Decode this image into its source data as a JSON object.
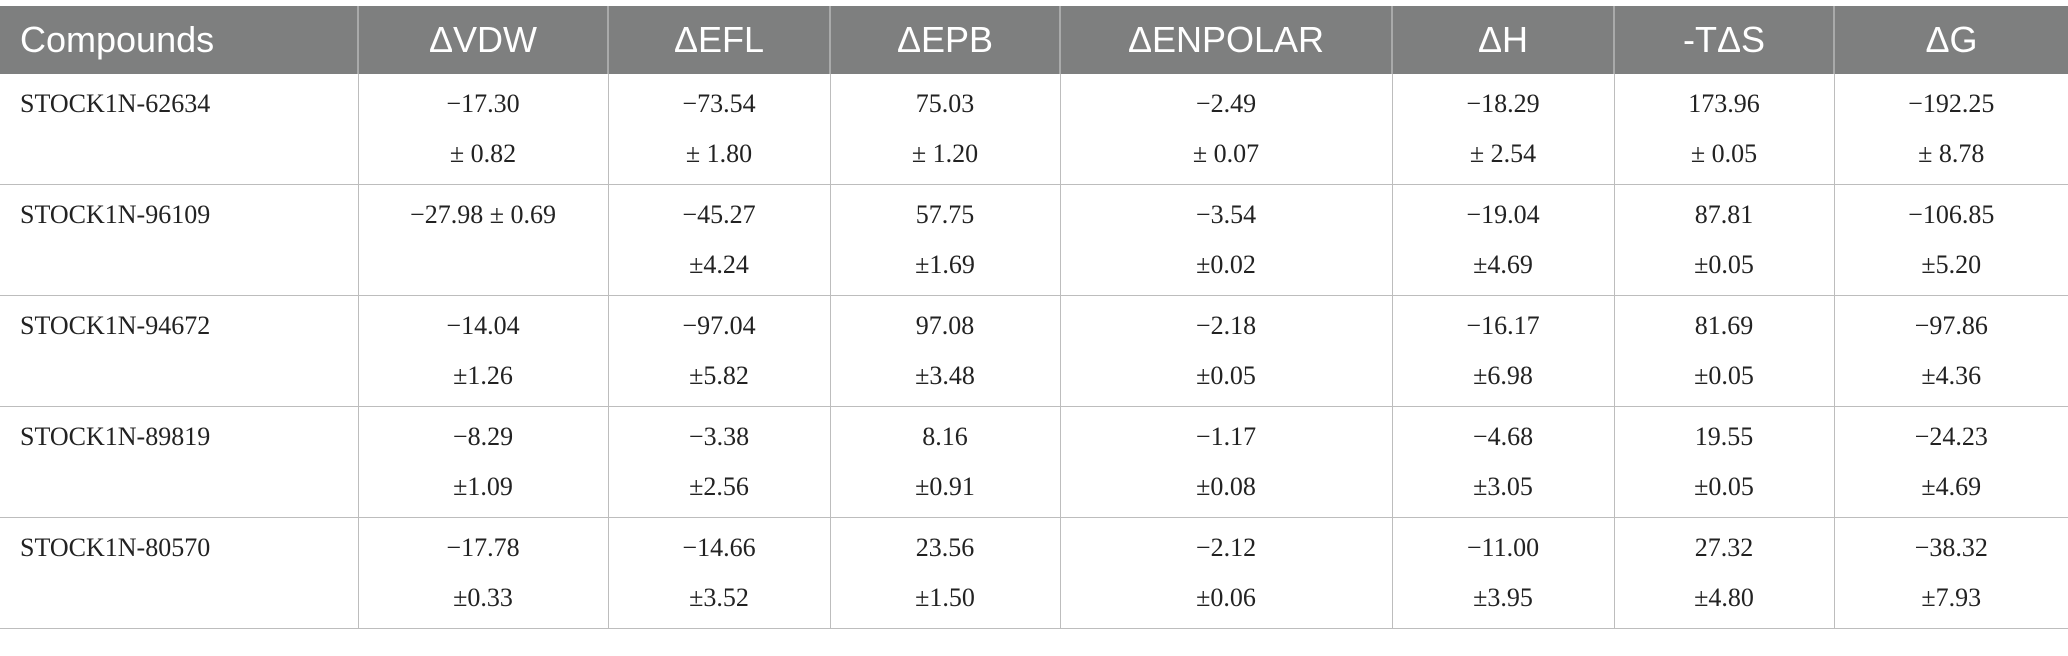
{
  "table": {
    "headers": [
      "Compounds",
      "ΔVDW",
      "ΔEFL",
      "ΔEPB",
      "ΔENPOLAR",
      "ΔH",
      "-TΔS",
      "ΔG"
    ],
    "rows": [
      {
        "compound": "STOCK1N-62634",
        "cells": [
          [
            "−17.30",
            "± 0.82"
          ],
          [
            "−73.54",
            "± 1.80"
          ],
          [
            "75.03",
            "± 1.20"
          ],
          [
            "−2.49",
            "± 0.07"
          ],
          [
            "−18.29",
            "± 2.54"
          ],
          [
            "173.96",
            "± 0.05"
          ],
          [
            "−192.25",
            "± 8.78"
          ]
        ]
      },
      {
        "compound": "STOCK1N-96109",
        "cells": [
          [
            "−27.98 ± 0.69",
            ""
          ],
          [
            "−45.27",
            "±4.24"
          ],
          [
            "57.75",
            "±1.69"
          ],
          [
            "−3.54",
            "±0.02"
          ],
          [
            "−19.04",
            "±4.69"
          ],
          [
            "87.81",
            "±0.05"
          ],
          [
            "−106.85",
            "±5.20"
          ]
        ]
      },
      {
        "compound": "STOCK1N-94672",
        "cells": [
          [
            "−14.04",
            "±1.26"
          ],
          [
            "−97.04",
            "±5.82"
          ],
          [
            "97.08",
            "±3.48"
          ],
          [
            "−2.18",
            "±0.05"
          ],
          [
            "−16.17",
            "±6.98"
          ],
          [
            "81.69",
            "±0.05"
          ],
          [
            "−97.86",
            "±4.36"
          ]
        ]
      },
      {
        "compound": "STOCK1N-89819",
        "cells": [
          [
            "−8.29",
            "±1.09"
          ],
          [
            "−3.38",
            "±2.56"
          ],
          [
            "8.16",
            "±0.91"
          ],
          [
            "−1.17",
            "±0.08"
          ],
          [
            "−4.68",
            "±3.05"
          ],
          [
            "19.55",
            "±0.05"
          ],
          [
            "−24.23",
            "±4.69"
          ]
        ]
      },
      {
        "compound": "STOCK1N-80570",
        "cells": [
          [
            "−17.78",
            "±0.33"
          ],
          [
            "−14.66",
            "±3.52"
          ],
          [
            "23.56",
            "±1.50"
          ],
          [
            "−2.12",
            "±0.06"
          ],
          [
            "−11.00",
            "±3.95"
          ],
          [
            "27.32",
            "±4.80"
          ],
          [
            "−38.32",
            "±7.93"
          ]
        ]
      }
    ]
  }
}
